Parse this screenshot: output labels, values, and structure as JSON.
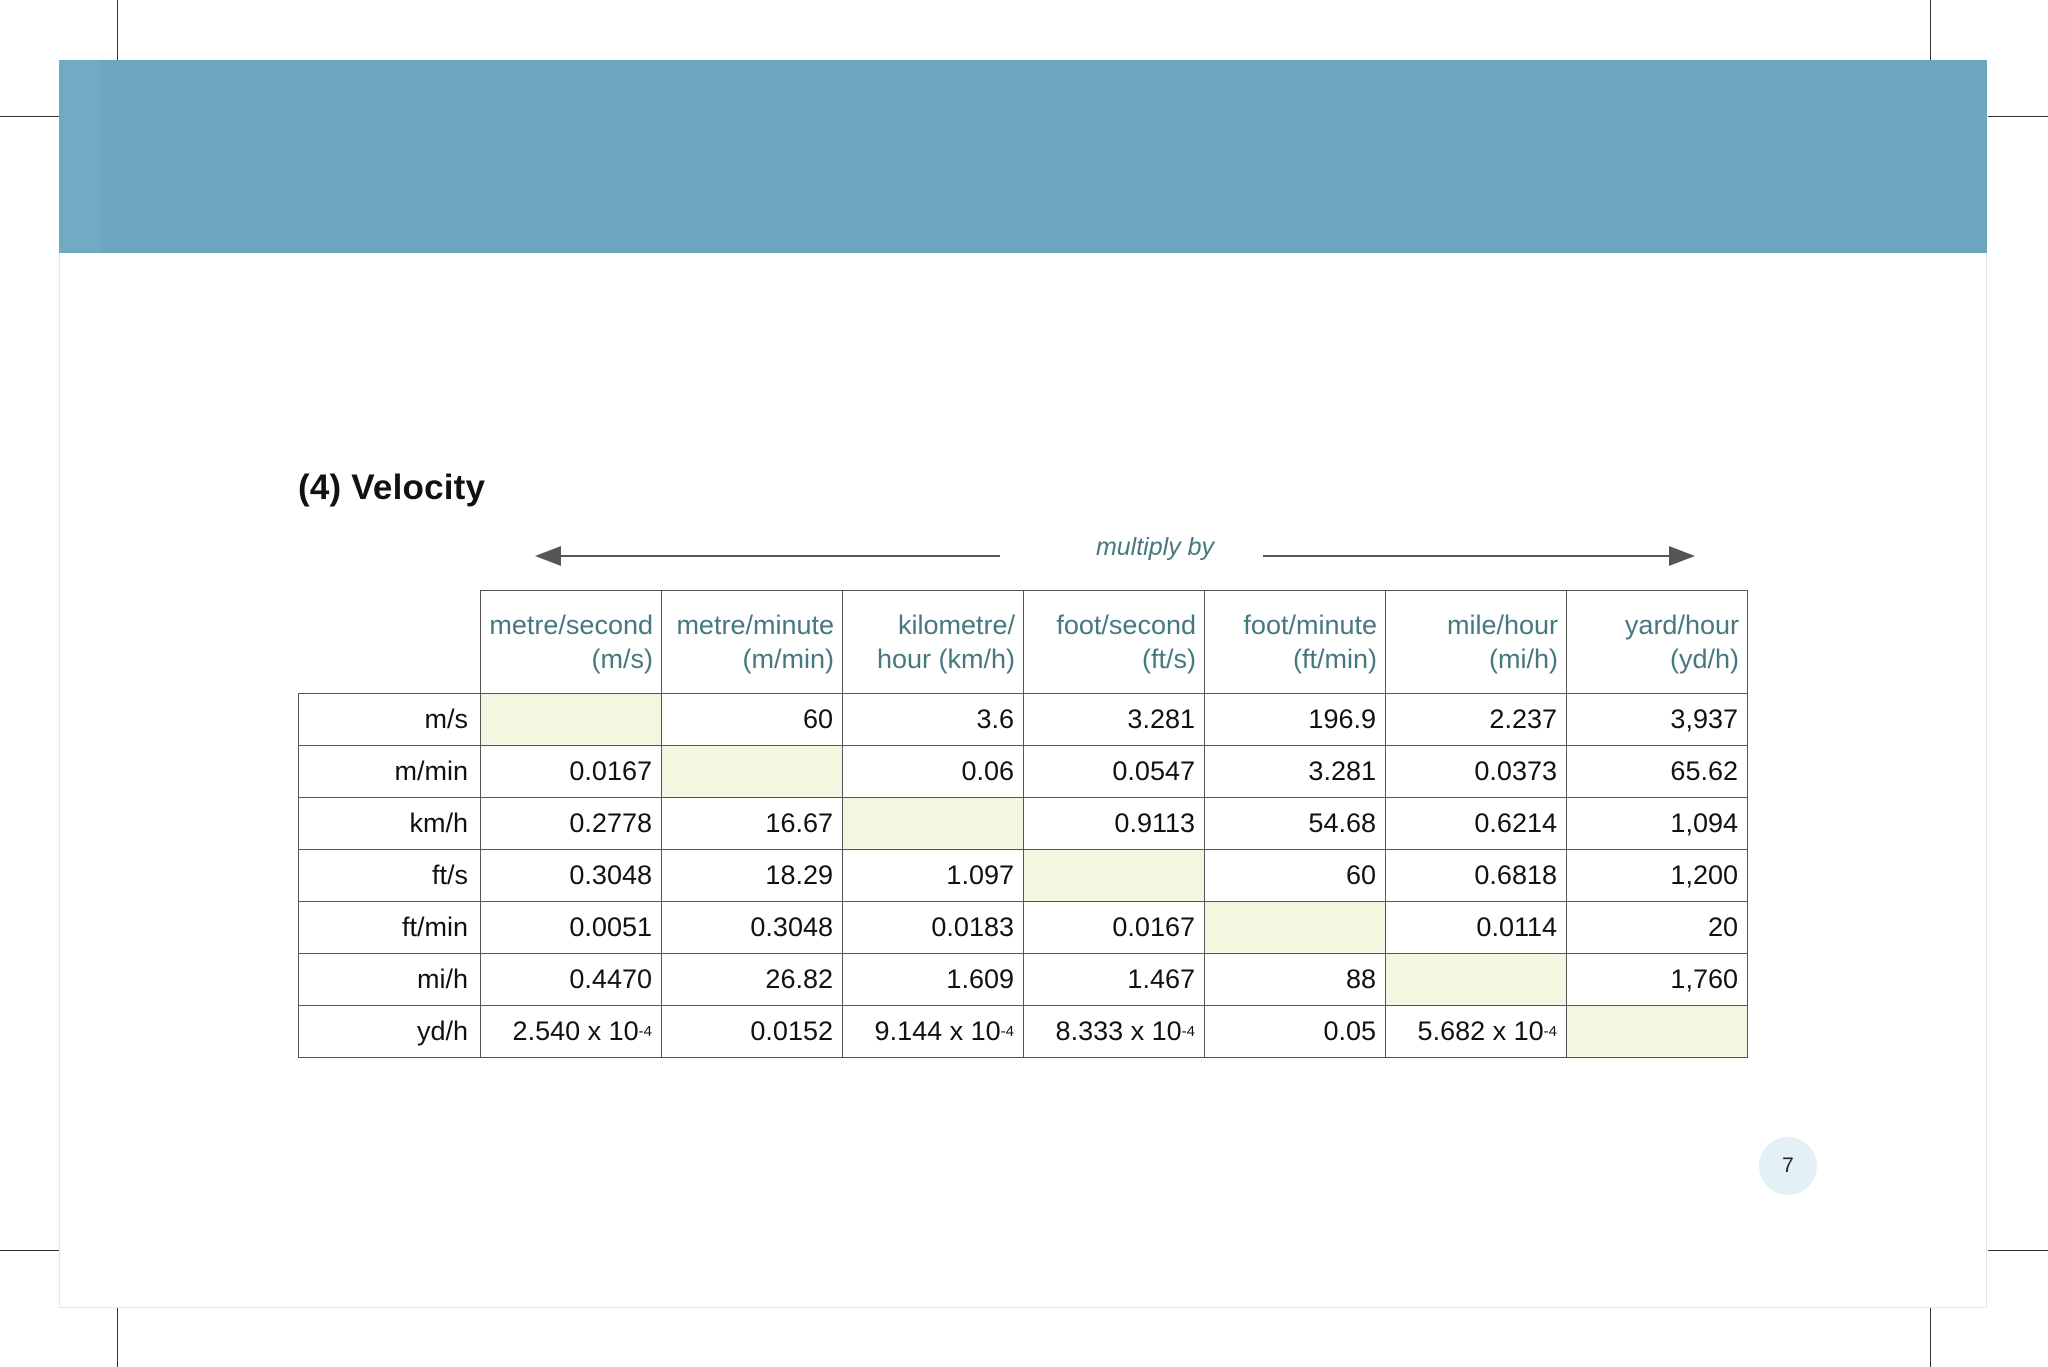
{
  "section_title": "(4) Velocity",
  "multiply_label": "multiply by",
  "table": {
    "columns": [
      {
        "line1": "metre/second",
        "line2": "(m/s)"
      },
      {
        "line1": "metre/minute",
        "line2": "(m/min)"
      },
      {
        "line1": "kilometre/",
        "line2": "hour (km/h)"
      },
      {
        "line1": "foot/second",
        "line2": "(ft/s)"
      },
      {
        "line1": "foot/minute",
        "line2": "(ft/min)"
      },
      {
        "line1": "mile/hour",
        "line2": "(mi/h)"
      },
      {
        "line1": "yard/hour",
        "line2": "(yd/h)"
      }
    ],
    "rows": [
      {
        "label": "m/s",
        "cells": [
          "",
          "60",
          "3.6",
          "3.281",
          "196.9",
          "2.237",
          "3,937"
        ]
      },
      {
        "label": "m/min",
        "cells": [
          "0.0167",
          "",
          "0.06",
          "0.0547",
          "3.281",
          "0.0373",
          "65.62"
        ]
      },
      {
        "label": "km/h",
        "cells": [
          "0.2778",
          "16.67",
          "",
          "0.9113",
          "54.68",
          "0.6214",
          "1,094"
        ]
      },
      {
        "label": "ft/s",
        "cells": [
          "0.3048",
          "18.29",
          "1.097",
          "",
          "60",
          "0.6818",
          "1,200"
        ]
      },
      {
        "label": "ft/min",
        "cells": [
          "0.0051",
          "0.3048",
          "0.0183",
          "0.0167",
          "",
          "0.0114",
          "20"
        ]
      },
      {
        "label": "mi/h",
        "cells": [
          "0.4470",
          "26.82",
          "1.609",
          "1.467",
          "88",
          "",
          "1,760"
        ]
      },
      {
        "label": "yd/h",
        "cells": [
          {
            "base": "2.540 x 10",
            "exp": "-4"
          },
          "0.0152",
          {
            "base": "9.144 x 10",
            "exp": "-4"
          },
          {
            "base": "8.333 x 10",
            "exp": "-4"
          },
          "0.05",
          {
            "base": "5.682 x 10",
            "exp": "-4"
          },
          ""
        ]
      }
    ],
    "diagonal_color": "#f3f6e1",
    "header_color": "#47777f"
  },
  "page_number": "7",
  "colors": {
    "banner": "#6ea5c0",
    "page_badge": "#e3f1f6"
  }
}
